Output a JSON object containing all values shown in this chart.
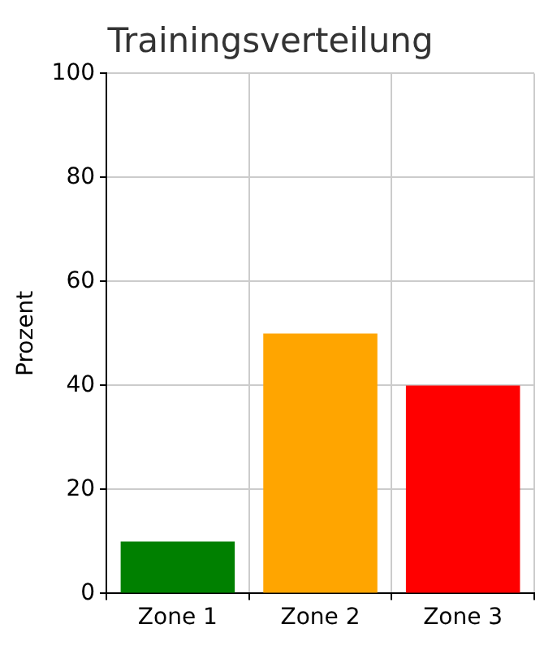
{
  "chart_data": {
    "type": "bar",
    "title": "Trainingsverteilung",
    "ylabel": "Prozent",
    "categories": [
      "Zone 1",
      "Zone 2",
      "Zone 3"
    ],
    "values": [
      10,
      50,
      40
    ],
    "colors": [
      "#008000",
      "#ffa500",
      "#ff0000"
    ],
    "ylim": [
      0,
      100
    ],
    "yticks": [
      0,
      20,
      40,
      60,
      80,
      100
    ],
    "grid": true
  }
}
